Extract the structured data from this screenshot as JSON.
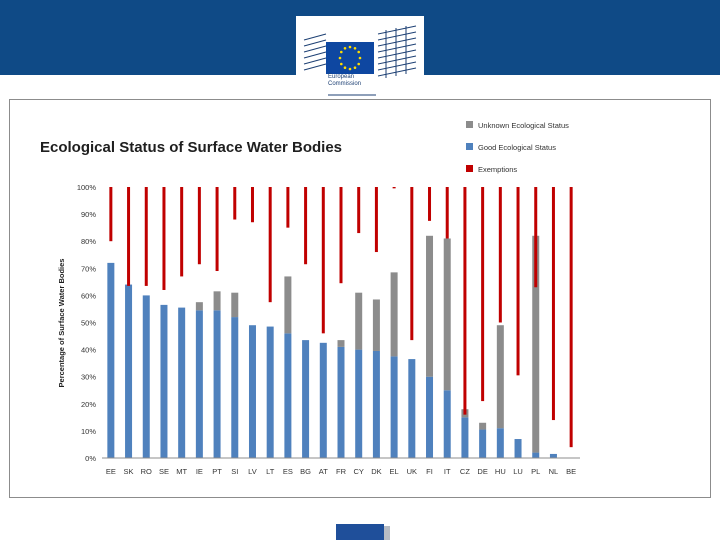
{
  "logo": {
    "name": "European Commission",
    "lines": [
      "European",
      "Commission"
    ]
  },
  "chart_data": {
    "type": "bar",
    "title": "Ecological Status of Surface Water Bodies",
    "ylabel": "Percentage of Surface Water Bodies",
    "xlabel": "",
    "ylim": [
      0,
      100
    ],
    "yticks": [
      "0%",
      "10%",
      "20%",
      "30%",
      "40%",
      "50%",
      "60%",
      "70%",
      "80%",
      "90%",
      "100%"
    ],
    "grid": false,
    "legend_position": "top-right",
    "categories": [
      "EE",
      "SK",
      "RO",
      "SE",
      "MT",
      "IE",
      "PT",
      "SI",
      "LV",
      "LT",
      "ES",
      "BG",
      "AT",
      "FR",
      "CY",
      "DK",
      "EL",
      "UK",
      "FI",
      "IT",
      "CZ",
      "DE",
      "HU",
      "LU",
      "PL",
      "NL",
      "BE"
    ],
    "series": [
      {
        "name": "Good Ecological Status",
        "color": "#4f81bd",
        "kind": "stacked-bar",
        "values": [
          72,
          64,
          60,
          56.5,
          55.5,
          54.5,
          54.5,
          52,
          49,
          48.5,
          46,
          43.5,
          42.5,
          41,
          40,
          39.5,
          37.5,
          36.5,
          30,
          25,
          15,
          10.5,
          11,
          7,
          2,
          1.5,
          0
        ]
      },
      {
        "name": "Unknown Ecological Status",
        "color": "#8c8c8c",
        "kind": "stacked-bar",
        "values": [
          0,
          0,
          0,
          0,
          0,
          3,
          7,
          9,
          0,
          0,
          21,
          0,
          0,
          2.5,
          21,
          19,
          31,
          0,
          52,
          56,
          3,
          2.5,
          38,
          0,
          80,
          0,
          0
        ]
      },
      {
        "name": "Exemptions",
        "color": "#c00000",
        "kind": "range-from-top",
        "values": [
          20,
          36.5,
          36.5,
          38,
          33,
          28.5,
          31,
          12,
          13,
          42.5,
          15,
          28.5,
          54,
          35.5,
          17,
          24,
          0.5,
          56.5,
          12.5,
          19,
          84,
          79,
          50,
          69.5,
          37,
          86,
          96
        ]
      }
    ]
  },
  "colors": {
    "header": "#0f4a86",
    "frame": "#8c8c8c",
    "footer": "#1f4f9a"
  }
}
